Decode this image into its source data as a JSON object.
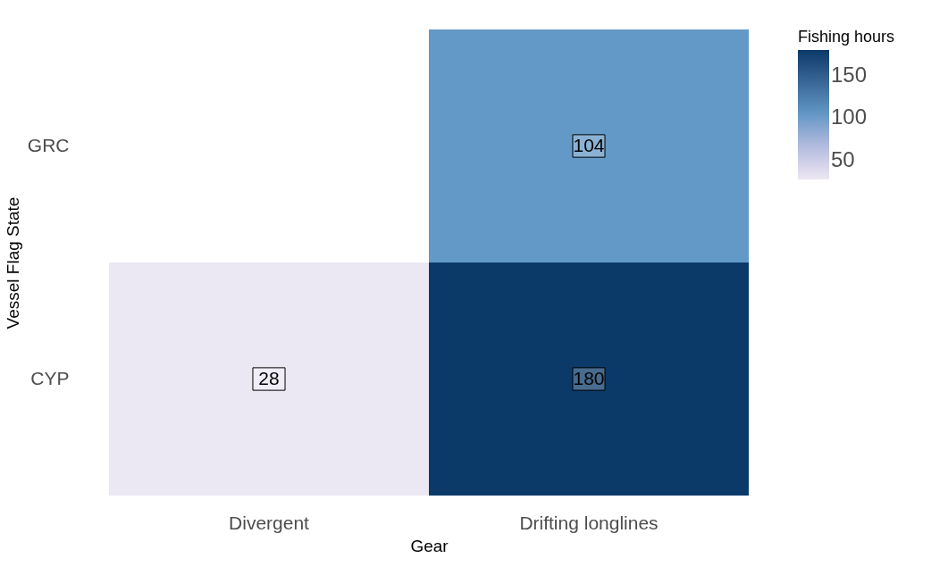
{
  "chart_data": {
    "type": "heatmap",
    "xlabel": "Gear",
    "ylabel": "Vessel Flag State",
    "legend_title": "Fishing hours",
    "categories": [
      "Divergent",
      "Drifting longlines"
    ],
    "y_categories": [
      "GRC",
      "CYP"
    ],
    "cells": [
      [
        null,
        104
      ],
      [
        28,
        180
      ]
    ],
    "data_labels": true,
    "clim": [
      28,
      180
    ],
    "cticks": [
      50,
      100,
      150
    ],
    "grid": false
  }
}
